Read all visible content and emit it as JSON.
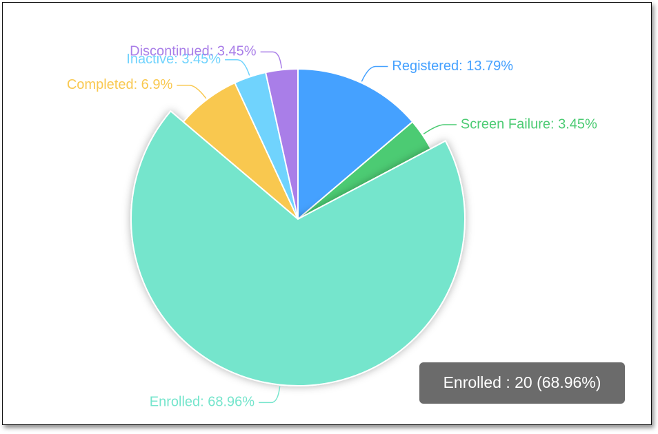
{
  "chart_data": {
    "type": "pie",
    "values": [
      13.79,
      3.45,
      68.96,
      6.9,
      3.45,
      3.45
    ],
    "value_labels": [
      "Registered: 13.79%",
      "Screen Failure: 3.45%",
      "Enrolled: 68.96%",
      "Completed: 6.9%",
      "Inactive: 3.45%",
      "Discontinued: 3.45%"
    ],
    "colors": [
      "#45a1ff",
      "#4ccb73",
      "#75e5cc",
      "#f9c84f",
      "#70d3fd",
      "#a97ee8"
    ],
    "hovered": 2,
    "tooltip": "Enrolled : 20 (68.96%)"
  }
}
